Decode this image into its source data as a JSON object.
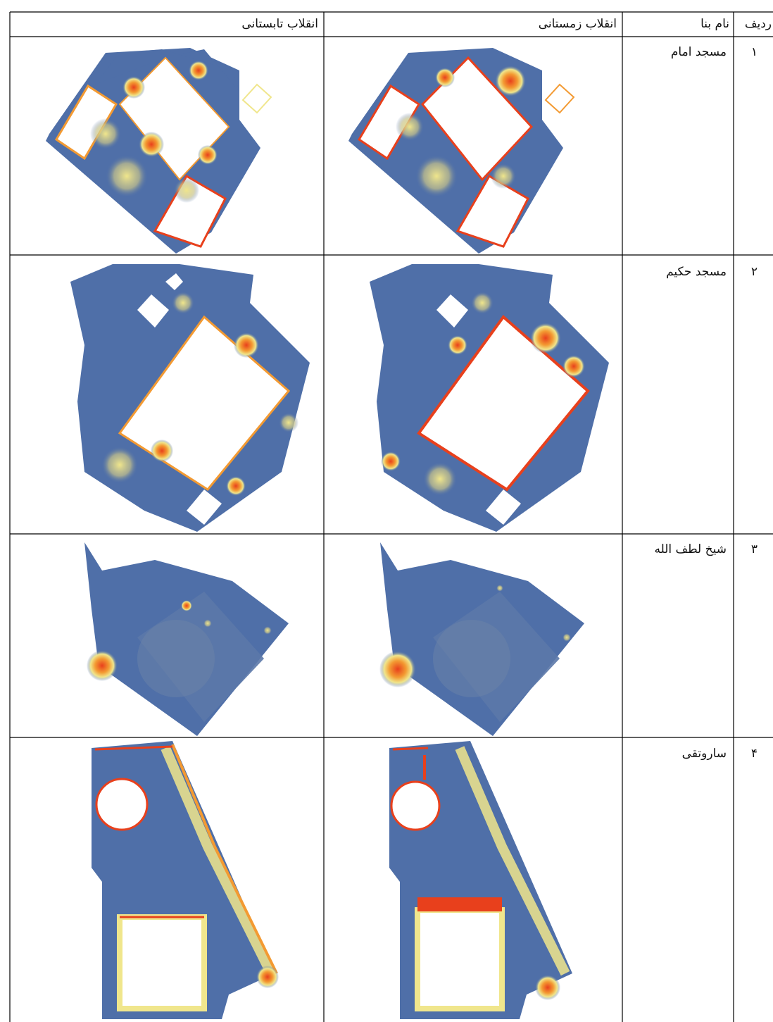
{
  "table": {
    "headers": {
      "row": "ردیف",
      "name": "نام بنا",
      "winter": "انقلاب زمستانی",
      "summer": "انقلاب تابستانی"
    },
    "rows": [
      {
        "number": "۱",
        "name": "مسجد امام",
        "winter_image": "solar-radiation-map",
        "summer_image": "solar-radiation-map"
      },
      {
        "number": "۲",
        "name": "مسجد حکیم",
        "winter_image": "solar-radiation-map",
        "summer_image": "solar-radiation-map"
      },
      {
        "number": "۳",
        "name": "شیخ لطف الله",
        "winter_image": "solar-radiation-map",
        "summer_image": "solar-radiation-map"
      },
      {
        "number": "۴",
        "name": "ساروتقی",
        "winter_image": "solar-radiation-map",
        "summer_image": "solar-radiation-map"
      }
    ]
  },
  "colors": {
    "base_blue": "#4f6fa8",
    "light_yellow": "#f0e68c",
    "orange": "#f39a32",
    "red": "#e8401c",
    "void": "#ffffff"
  }
}
